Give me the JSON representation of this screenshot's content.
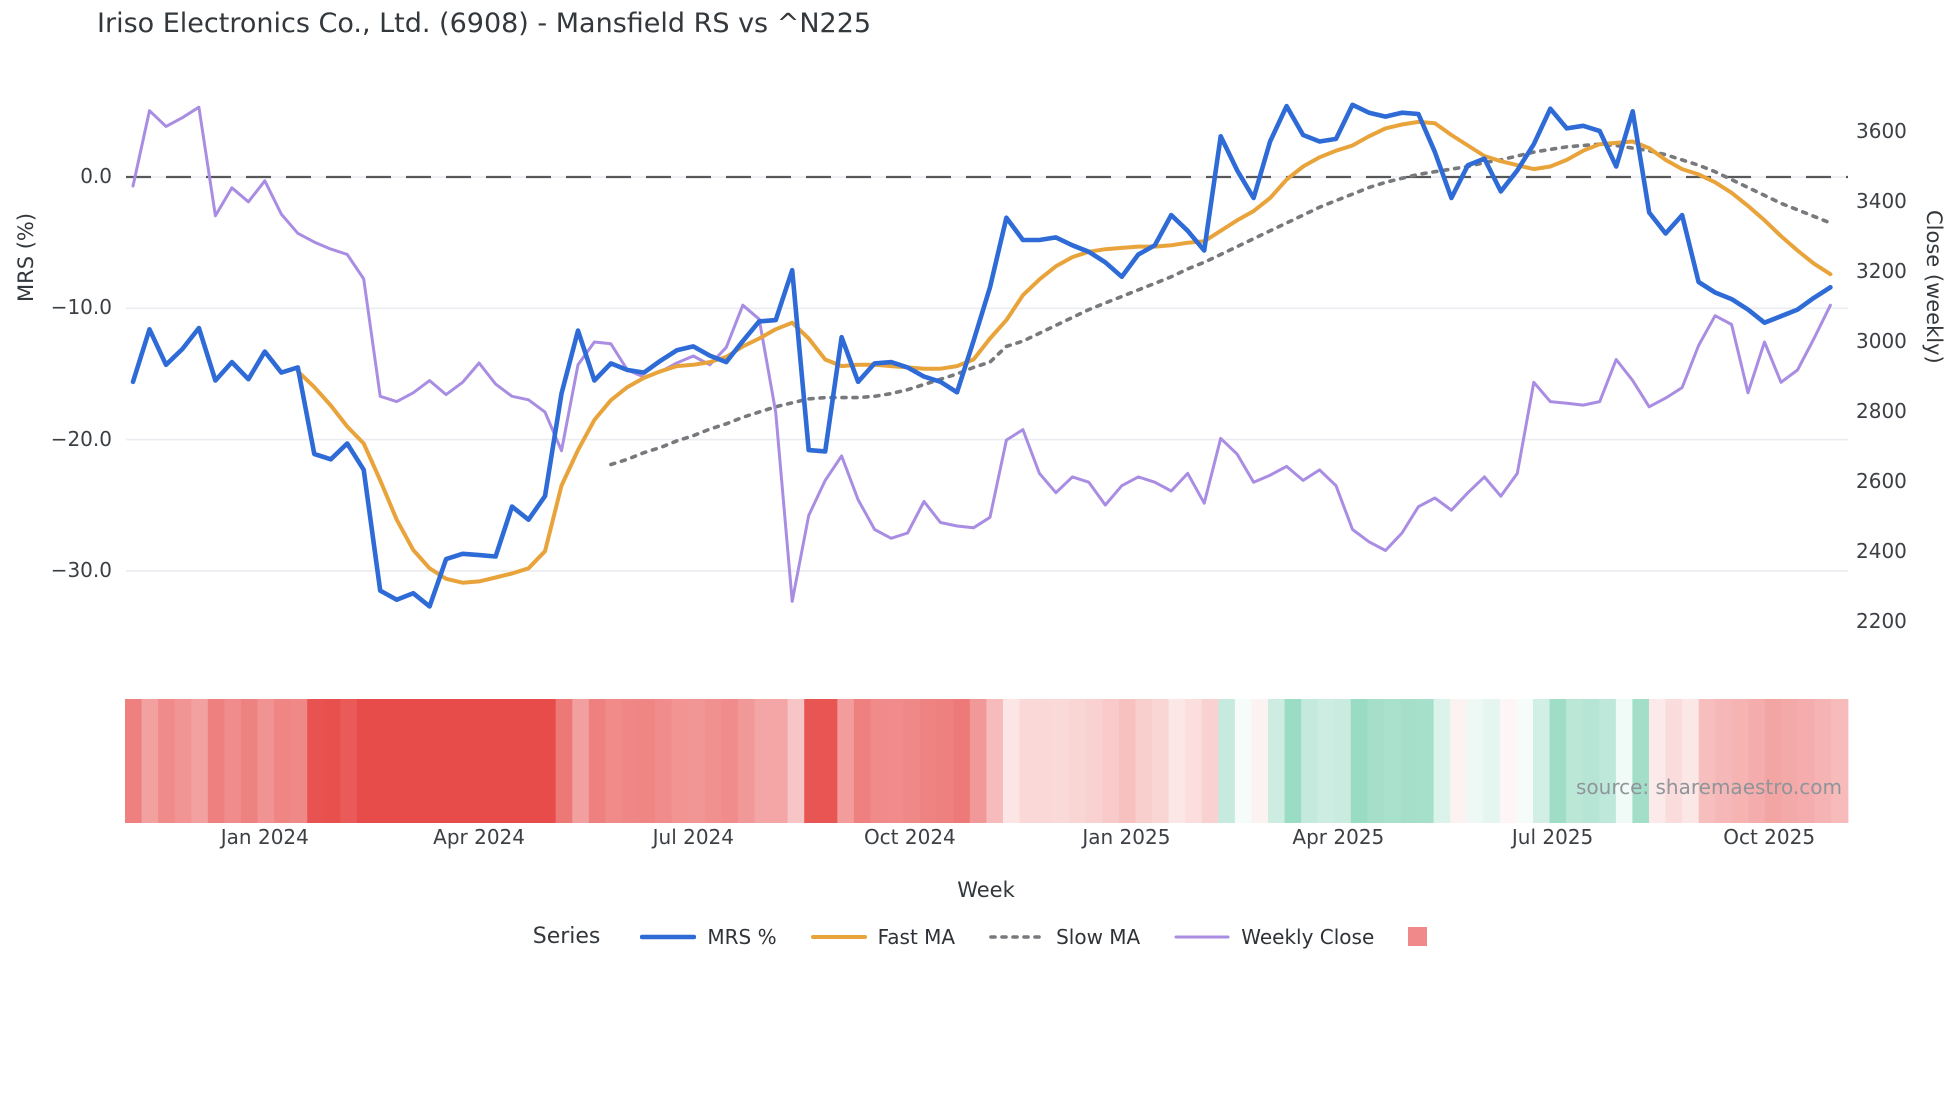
{
  "chart_data": {
    "type": "line",
    "title": "Iriso Electronics Co., Ltd. (6908) - Mansfield RS vs ^N225",
    "xlabel": "Week",
    "ylabel_left": "MRS (%)",
    "ylabel_right": "Close (weekly)",
    "grid": "horizontal-only",
    "zero_line_value": 0,
    "ylim_left": [
      -36.5,
      8.5
    ],
    "ylim_right": [
      2090,
      3790
    ],
    "x_ticks": [
      {
        "label": "Jan 2024",
        "week": 8
      },
      {
        "label": "Apr 2024",
        "week": 21
      },
      {
        "label": "Jul 2024",
        "week": 34
      },
      {
        "label": "Oct 2024",
        "week": 47.14
      },
      {
        "label": "Jan 2025",
        "week": 60.28
      },
      {
        "label": "Apr 2025",
        "week": 73.14
      },
      {
        "label": "Jul 2025",
        "week": 86.14
      },
      {
        "label": "Oct 2025",
        "week": 99.28
      }
    ],
    "y_left_ticks": [
      {
        "label": "0.0",
        "value": 0
      },
      {
        "label": "−10.0",
        "value": -10
      },
      {
        "label": "−20.0",
        "value": -20
      },
      {
        "label": "−30.0",
        "value": -30
      }
    ],
    "y_right_ticks": [
      {
        "label": "3600",
        "value": 3600
      },
      {
        "label": "3400",
        "value": 3400
      },
      {
        "label": "3200",
        "value": 3200
      },
      {
        "label": "3000",
        "value": 3000
      },
      {
        "label": "2800",
        "value": 2800
      },
      {
        "label": "2600",
        "value": 2600
      },
      {
        "label": "2400",
        "value": 2400
      },
      {
        "label": "2200",
        "value": 2200
      }
    ],
    "legend": {
      "title": "Series",
      "heat_swatch_color": "#f08a8a"
    },
    "heat_strip": {
      "from_series": "MRS %",
      "negative_color": "#e74c4a",
      "positive_color": "#59c49e"
    },
    "series": [
      {
        "name": "MRS %",
        "axis": "left",
        "color": "#2e6bd6",
        "style": "solid",
        "lw": 4.6,
        "start_week": 0,
        "values": [
          -15.6,
          -11.6,
          -14.3,
          -13.1,
          -11.5,
          -15.5,
          -14.1,
          -15.4,
          -13.3,
          -14.9,
          -14.5,
          -21.1,
          -21.5,
          -20.3,
          -22.3,
          -31.5,
          -32.2,
          -31.7,
          -32.7,
          -29.1,
          -28.7,
          -28.8,
          -28.9,
          -25.1,
          -26.1,
          -24.3,
          -16.5,
          -11.7,
          -15.5,
          -14.2,
          -14.7,
          -14.9,
          -14.0,
          -13.2,
          -12.9,
          -13.6,
          -14.1,
          -12.5,
          -11.0,
          -10.9,
          -7.1,
          -20.8,
          -20.9,
          -12.2,
          -15.6,
          -14.2,
          -14.1,
          -14.5,
          -15.2,
          -15.6,
          -16.4,
          -12.5,
          -8.4,
          -3.1,
          -4.8,
          -4.8,
          -4.6,
          -5.2,
          -5.7,
          -6.5,
          -7.6,
          -5.9,
          -5.2,
          -2.9,
          -4.1,
          -5.6,
          3.1,
          0.5,
          -1.6,
          2.7,
          5.4,
          3.2,
          2.7,
          2.9,
          5.5,
          4.9,
          4.6,
          4.9,
          4.8,
          1.9,
          -1.6,
          0.9,
          1.4,
          -1.1,
          0.5,
          2.5,
          5.2,
          3.7,
          3.9,
          3.5,
          0.8,
          5.0,
          -2.7,
          -4.3,
          -2.9,
          -8.0,
          -8.8,
          -9.3,
          -10.1,
          -11.1,
          -10.6,
          -10.1,
          -9.2,
          -8.4
        ]
      },
      {
        "name": "Fast MA",
        "axis": "left",
        "color": "#e9a33b",
        "style": "solid",
        "lw": 4.0,
        "start_week": 10,
        "values": [
          -14.8,
          -16.0,
          -17.4,
          -19.0,
          -20.3,
          -23.1,
          -26.1,
          -28.4,
          -29.8,
          -30.6,
          -30.9,
          -30.8,
          -30.5,
          -30.2,
          -29.8,
          -28.5,
          -23.5,
          -20.8,
          -18.5,
          -17.0,
          -16.0,
          -15.3,
          -14.8,
          -14.4,
          -14.3,
          -14.1,
          -13.7,
          -12.9,
          -12.3,
          -11.6,
          -11.1,
          -12.3,
          -13.9,
          -14.4,
          -14.3,
          -14.3,
          -14.4,
          -14.5,
          -14.6,
          -14.6,
          -14.4,
          -13.9,
          -12.3,
          -10.9,
          -9.0,
          -7.8,
          -6.8,
          -6.1,
          -5.7,
          -5.5,
          -5.4,
          -5.3,
          -5.3,
          -5.2,
          -5.0,
          -4.9,
          -4.1,
          -3.3,
          -2.6,
          -1.6,
          -0.2,
          0.8,
          1.5,
          2.0,
          2.4,
          3.1,
          3.7,
          4.0,
          4.2,
          4.1,
          3.2,
          2.4,
          1.6,
          1.2,
          0.9,
          0.6,
          0.8,
          1.3,
          2.0,
          2.5,
          2.6,
          2.7,
          2.2,
          1.3,
          0.6,
          0.2,
          -0.4,
          -1.2,
          -2.2,
          -3.3,
          -4.5,
          -5.6,
          -6.6,
          -7.4
        ]
      },
      {
        "name": "Slow MA",
        "axis": "left",
        "color": "#77797c",
        "style": "dotted",
        "lw": 3.6,
        "start_week": 29,
        "values": [
          -21.9,
          -21.5,
          -21.0,
          -20.6,
          -20.1,
          -19.7,
          -19.2,
          -18.8,
          -18.3,
          -17.9,
          -17.5,
          -17.2,
          -16.9,
          -16.8,
          -16.8,
          -16.8,
          -16.7,
          -16.5,
          -16.2,
          -15.8,
          -15.4,
          -15.0,
          -14.5,
          -14.1,
          -12.9,
          -12.5,
          -11.9,
          -11.3,
          -10.7,
          -10.1,
          -9.6,
          -9.1,
          -8.6,
          -8.1,
          -7.6,
          -7.0,
          -6.5,
          -5.9,
          -5.3,
          -4.7,
          -4.1,
          -3.5,
          -2.9,
          -2.3,
          -1.8,
          -1.3,
          -0.8,
          -0.4,
          -0.1,
          0.2,
          0.4,
          0.6,
          0.8,
          1.1,
          1.3,
          1.6,
          1.9,
          2.1,
          2.3,
          2.4,
          2.5,
          2.4,
          2.2,
          2.0,
          1.7,
          1.3,
          0.9,
          0.4,
          -0.2,
          -0.8,
          -1.4,
          -2.0,
          -2.5,
          -3.0,
          -3.5
        ]
      },
      {
        "name": "Weekly Close",
        "axis": "right",
        "color": "#a98de3",
        "style": "solid",
        "lw": 3.0,
        "start_week": 0,
        "values": [
          3445,
          3660,
          3615,
          3640,
          3670,
          3360,
          3440,
          3400,
          3460,
          3365,
          3310,
          3285,
          3265,
          3250,
          3180,
          2845,
          2830,
          2855,
          2890,
          2850,
          2885,
          2940,
          2880,
          2845,
          2835,
          2800,
          2690,
          2935,
          3000,
          2995,
          2920,
          2900,
          2915,
          2940,
          2960,
          2935,
          2985,
          3105,
          3065,
          2800,
          2260,
          2505,
          2605,
          2675,
          2550,
          2465,
          2440,
          2455,
          2545,
          2485,
          2475,
          2470,
          2500,
          2720,
          2750,
          2625,
          2570,
          2615,
          2600,
          2535,
          2590,
          2615,
          2600,
          2575,
          2625,
          2540,
          2725,
          2680,
          2600,
          2620,
          2645,
          2605,
          2635,
          2590,
          2465,
          2430,
          2405,
          2455,
          2530,
          2555,
          2520,
          2570,
          2615,
          2560,
          2625,
          2885,
          2830,
          2825,
          2820,
          2830,
          2950,
          2890,
          2815,
          2840,
          2870,
          2990,
          3075,
          3050,
          2855,
          3000,
          2885,
          2920,
          3010,
          3105
        ]
      }
    ],
    "source": "source: sharemaestro.com"
  }
}
